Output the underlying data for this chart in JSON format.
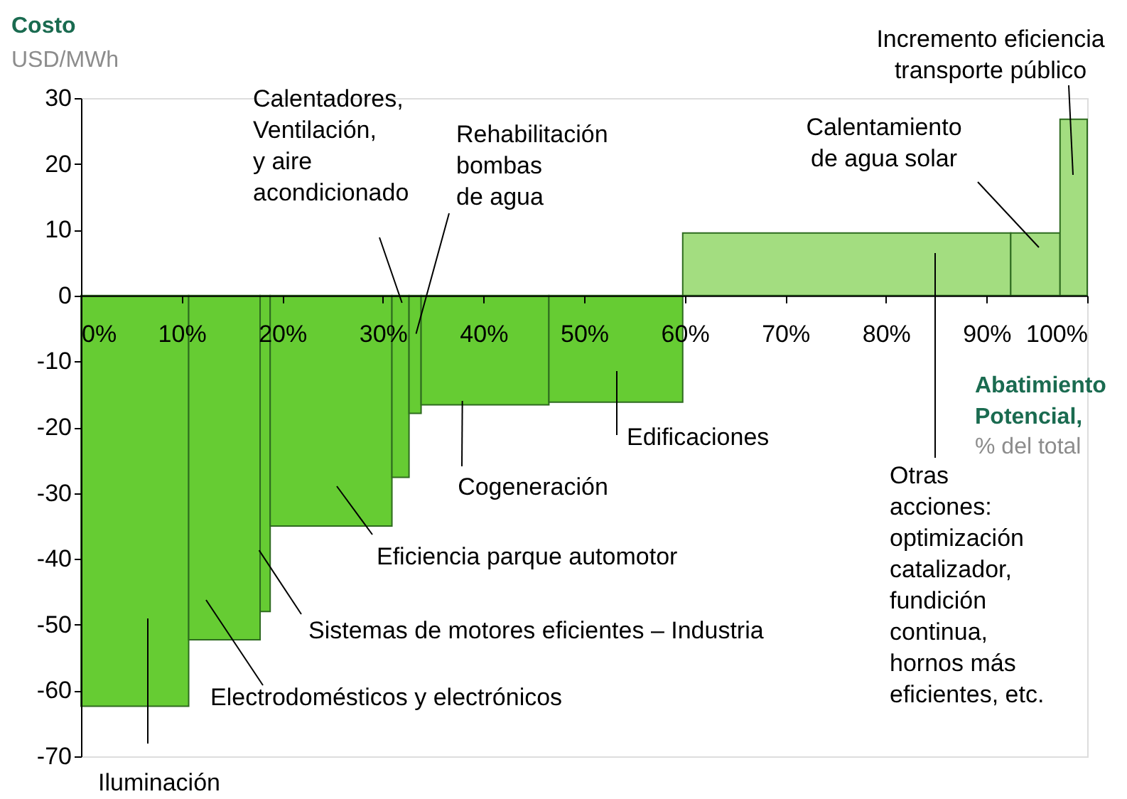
{
  "chart_data": {
    "type": "histogram",
    "title": "Costo",
    "subtitle": "USD/MWh",
    "xlabel": "Abatimiento Potencial,",
    "bins": [
      0,
      10.7,
      17.8,
      18.8,
      30.9,
      32.6,
      33.8,
      46.5,
      59.8,
      92.4,
      97.3,
      100
    ],
    "values": [
      -62.4,
      -52.3,
      -48,
      -35,
      -27.6,
      -17.9,
      -16.6,
      -16.2,
      9.5,
      9.5,
      26.8
    ],
    "colors": [
      "#66cc33",
      "#66cc33",
      "#66cc33",
      "#66cc33",
      "#66cc33",
      "#66cc33",
      "#66cc33",
      "#66cc33",
      "#a3dd80",
      "#a3dd80",
      "#a3dd80"
    ],
    "xlim": [
      0,
      100
    ],
    "xticks": [
      {
        "value": 0,
        "label": "0%"
      },
      {
        "value": 10,
        "label": "10%"
      },
      {
        "value": 20,
        "label": "20%"
      },
      {
        "value": 30,
        "label": "30%"
      },
      {
        "value": 40,
        "label": "40%"
      },
      {
        "value": 50,
        "label": "50%"
      },
      {
        "value": 60,
        "label": "60%"
      },
      {
        "value": 70,
        "label": "70%"
      },
      {
        "value": 80,
        "label": "80%"
      },
      {
        "value": 90,
        "label": "90%"
      },
      {
        "value": 100,
        "label": "100%"
      }
    ],
    "ylim": [
      -70,
      30
    ],
    "yticks": [
      30,
      20,
      10,
      0,
      -10,
      -20,
      -30,
      -40,
      -50,
      -60,
      -70
    ],
    "grid": false,
    "annotations": [
      "Iluminación",
      "Electrodomésticos y electrónicos",
      {
        "text": "Sistemas de motores eficientes – Industria",
        "x": 17.7,
        "y": -38.7
      },
      "Eficiencia parque automotor",
      {
        "text": "Cogeneración",
        "x": 37.9,
        "y": -16
      },
      "Edificaciones",
      {
        "text": "Calentadores,\nVentilación,\ny aire\nacondicionado",
        "x": 31.9,
        "y": -1.1
      },
      {
        "text": "Rehabilitación\nbombas\nde agua",
        "x": 33.3,
        "y": -5.8
      },
      "Otras\nacciones:\noptimización\ncatalizador,\nfundición\ncontinua,\nhornos más\neficientes, etc.",
      "Calentamiento\nde agua solar",
      "Incremento eficiencia\ntransporte público",
      "% del total"
    ]
  }
}
